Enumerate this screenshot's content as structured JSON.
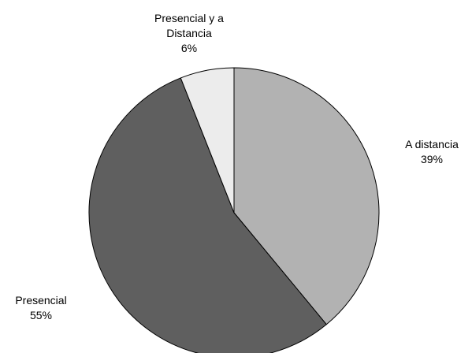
{
  "chart_data": {
    "type": "pie",
    "title": "",
    "slices": [
      {
        "label_lines": [
          "A distancia"
        ],
        "percent_label": "39%",
        "value": 39,
        "color": "#b2b2b2"
      },
      {
        "label_lines": [
          "Presencial"
        ],
        "percent_label": "55%",
        "value": 55,
        "color": "#5f5f5f"
      },
      {
        "label_lines": [
          "Presencial y a",
          "Distancia"
        ],
        "percent_label": "6%",
        "value": 6,
        "color": "#ececec"
      }
    ],
    "start_angle_deg": 0,
    "direction": "clockwise",
    "legend": "none"
  }
}
